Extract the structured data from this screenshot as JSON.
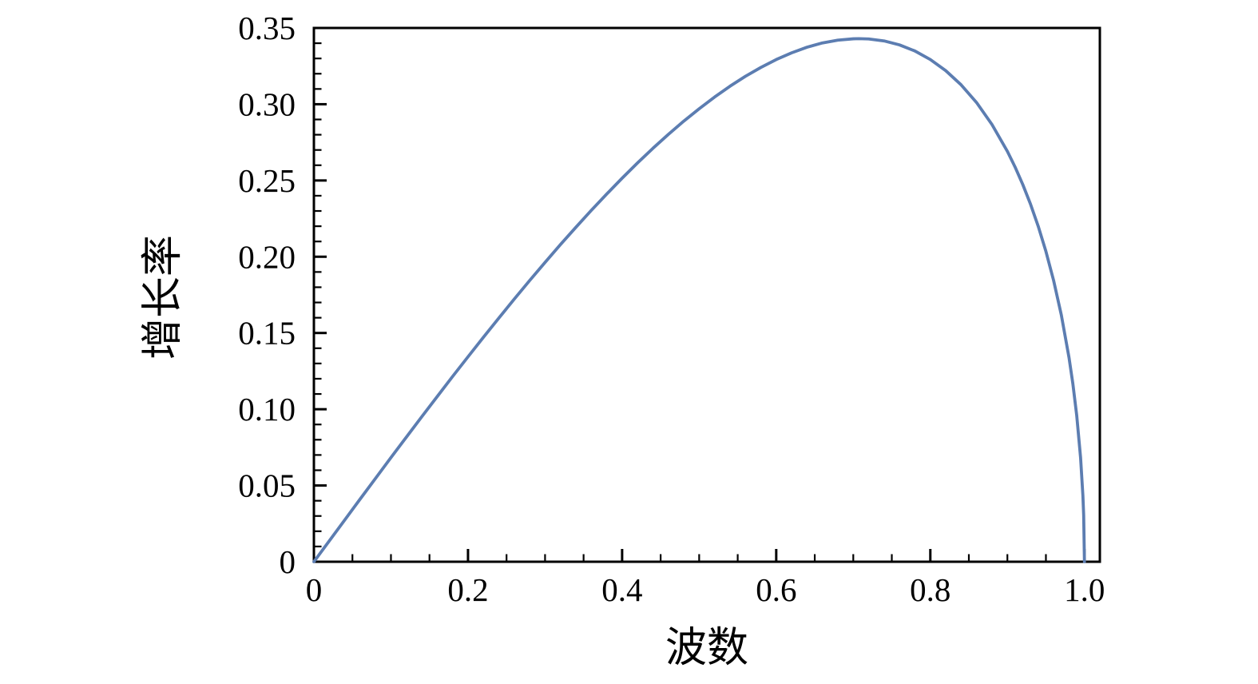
{
  "figure": {
    "background": "#ffffff",
    "frame_color": "#000000",
    "tick_color": "#000000",
    "text_color": "#000000"
  },
  "chart_data": {
    "type": "line",
    "title": "",
    "xlabel": "波数",
    "ylabel": "增长率",
    "xlim": [
      0,
      1.02
    ],
    "ylim": [
      0,
      0.35
    ],
    "grid": false,
    "legend": null,
    "frame": "left-bottom-ticks-inward",
    "x_major_ticks": [
      0,
      0.2,
      0.4,
      0.6,
      0.8,
      1.0
    ],
    "x_major_tick_labels": [
      "0",
      "0.2",
      "0.4",
      "0.6",
      "0.8",
      "1.0"
    ],
    "x_minor_tick_step": 0.05,
    "y_major_ticks": [
      0,
      0.05,
      0.1,
      0.15,
      0.2,
      0.25,
      0.3,
      0.35
    ],
    "y_major_tick_labels": [
      "0",
      "0.05",
      "0.10",
      "0.15",
      "0.20",
      "0.25",
      "0.30",
      "0.35"
    ],
    "y_minor_tick_step": 0.01,
    "peak": {
      "x": 0.707,
      "y": 0.343
    },
    "series": [
      {
        "color": "#5C7DB1",
        "stroke_width": 3.8,
        "points": [
          [
            0,
            0
          ],
          [
            0.02,
            0.0137
          ],
          [
            0.04,
            0.0274
          ],
          [
            0.06,
            0.0411
          ],
          [
            0.08,
            0.0547
          ],
          [
            0.1,
            0.0683
          ],
          [
            0.12,
            0.0817
          ],
          [
            0.14,
            0.0951
          ],
          [
            0.16,
            0.1083
          ],
          [
            0.18,
            0.1215
          ],
          [
            0.2,
            0.1344
          ],
          [
            0.22,
            0.1472
          ],
          [
            0.24,
            0.1598
          ],
          [
            0.26,
            0.1722
          ],
          [
            0.28,
            0.1844
          ],
          [
            0.3,
            0.1963
          ],
          [
            0.32,
            0.208
          ],
          [
            0.34,
            0.2193
          ],
          [
            0.36,
            0.2304
          ],
          [
            0.38,
            0.2411
          ],
          [
            0.4,
            0.2515
          ],
          [
            0.42,
            0.2615
          ],
          [
            0.44,
            0.2711
          ],
          [
            0.46,
            0.2802
          ],
          [
            0.48,
            0.2889
          ],
          [
            0.5,
            0.297
          ],
          [
            0.52,
            0.3047
          ],
          [
            0.54,
            0.3118
          ],
          [
            0.56,
            0.3183
          ],
          [
            0.58,
            0.3241
          ],
          [
            0.6,
            0.3293
          ],
          [
            0.62,
            0.3337
          ],
          [
            0.64,
            0.3374
          ],
          [
            0.66,
            0.3402
          ],
          [
            0.68,
            0.342
          ],
          [
            0.7,
            0.3429
          ],
          [
            0.7071,
            0.343
          ],
          [
            0.72,
            0.3428
          ],
          [
            0.74,
            0.3415
          ],
          [
            0.76,
            0.3389
          ],
          [
            0.78,
            0.3349
          ],
          [
            0.8,
            0.3293
          ],
          [
            0.82,
            0.322
          ],
          [
            0.84,
            0.3127
          ],
          [
            0.86,
            0.3011
          ],
          [
            0.88,
            0.2867
          ],
          [
            0.9,
            0.2691
          ],
          [
            0.91,
            0.2588
          ],
          [
            0.92,
            0.2473
          ],
          [
            0.93,
            0.2345
          ],
          [
            0.94,
            0.22
          ],
          [
            0.95,
            0.2035
          ],
          [
            0.96,
            0.1844
          ],
          [
            0.97,
            0.1618
          ],
          [
            0.98,
            0.1338
          ],
          [
            0.985,
            0.1166
          ],
          [
            0.99,
            0.0958
          ],
          [
            0.995,
            0.0682
          ],
          [
            0.998,
            0.0433
          ],
          [
            0.999,
            0.0306
          ],
          [
            1.0,
            0
          ]
        ]
      }
    ]
  }
}
